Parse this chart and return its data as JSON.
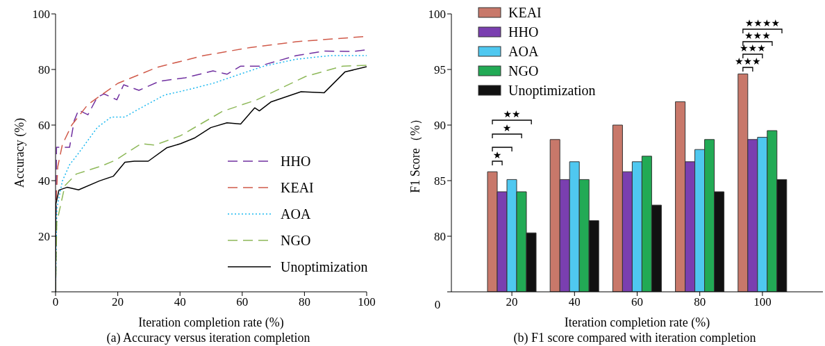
{
  "chart_data": [
    {
      "type": "line",
      "title": "(a) Accuracy versus iteration completion",
      "xlabel": "Iteration completion rate (%)",
      "ylabel": "Accuracy (%)",
      "xlim": [
        0,
        100
      ],
      "xticks": [
        0,
        20,
        40,
        60,
        80,
        100
      ],
      "ylim": [
        0,
        100
      ],
      "yticks": [
        {
          "value": 0,
          "label": null
        },
        20,
        40,
        60,
        80,
        100
      ],
      "legend": "bottom right",
      "series": [
        {
          "name": "HHO",
          "color": "#7030a0",
          "line_style": "dashed",
          "x": [
            0,
            0.3,
            4.5,
            6,
            7.4,
            10.4,
            13.4,
            15.6,
            19.7,
            21.9,
            26.8,
            33.5,
            41.7,
            50.6,
            55.1,
            59.5,
            65.5,
            77.4,
            86.3,
            96,
            100
          ],
          "values": [
            0,
            52,
            52,
            61.6,
            65.4,
            63.7,
            70,
            71.2,
            69.1,
            74.5,
            72.5,
            75.8,
            77,
            79.5,
            78.3,
            81.2,
            81.2,
            85,
            86.6,
            86.5,
            87.1
          ]
        },
        {
          "name": "KEAI",
          "color": "#d05a4a",
          "line_style": "dashed",
          "x": [
            0,
            0.1,
            0.7,
            2.2,
            5.2,
            10.4,
            20,
            32.7,
            47.6,
            62.5,
            77.4,
            100
          ],
          "values": [
            0,
            30,
            45,
            53,
            60,
            67.4,
            75,
            80.8,
            85,
            87.9,
            90,
            91.9
          ]
        },
        {
          "name": "AOA",
          "color": "#1ab8f0",
          "line_style": "dotted",
          "x": [
            0,
            0.4,
            2.2,
            4.5,
            7.4,
            13.4,
            17.9,
            22.3,
            26.8,
            35,
            41.7,
            50.6,
            60.3,
            67,
            77.4,
            88.5,
            100
          ],
          "values": [
            0,
            29.9,
            39.9,
            45.7,
            49.9,
            59.1,
            62.9,
            62.9,
            65.8,
            70.8,
            72.5,
            75,
            78.7,
            81.2,
            83.7,
            85,
            85
          ]
        },
        {
          "name": "NGO",
          "color": "#8db858",
          "line_style": "dashed",
          "x": [
            0,
            0.4,
            3,
            6.7,
            14.9,
            19.3,
            27.5,
            32,
            40.2,
            53.6,
            64.7,
            80.4,
            92.3,
            100
          ],
          "values": [
            0,
            24.9,
            38.2,
            42.4,
            45.3,
            47.4,
            53.3,
            52.8,
            56.2,
            64.9,
            69.1,
            77.5,
            81.2,
            81.5
          ]
        },
        {
          "name": "Unoptimization",
          "color": "#000000",
          "line_style": "solid",
          "x": [
            0,
            0.1,
            1.1,
            3.7,
            7.4,
            14.1,
            18.6,
            22.3,
            25.3,
            29.8,
            35.7,
            40.2,
            44.6,
            49.9,
            55.1,
            59.5,
            64,
            65.5,
            69.2,
            78.9,
            86.3,
            93,
            100
          ],
          "values": [
            0,
            31.6,
            36.6,
            37.6,
            36.7,
            39.9,
            41.6,
            46.6,
            47,
            47,
            51.8,
            53.3,
            55.3,
            59.1,
            60.8,
            60.4,
            66.2,
            65.1,
            68.3,
            72,
            71.6,
            79.1,
            81
          ]
        }
      ]
    },
    {
      "type": "bar",
      "title": "(b) F1 score compared with iteration completion",
      "xlabel": "Iteration completion rate (%)",
      "ylabel": "F1 Score（%）",
      "categories": [
        "20",
        "40",
        "60",
        "80",
        "100"
      ],
      "ylim": [
        75,
        100
      ],
      "yticks": [
        {
          "value": 75,
          "label": null
        },
        80,
        85,
        90,
        95,
        100
      ],
      "legend": "top left",
      "series": [
        {
          "name": "KEAI",
          "color": "#c8786a",
          "values": [
            85.8,
            88.7,
            90.0,
            92.1,
            94.6
          ]
        },
        {
          "name": "HHO",
          "color": "#7a3fb0",
          "values": [
            84.0,
            85.1,
            85.8,
            86.7,
            88.7
          ]
        },
        {
          "name": "AOA",
          "color": "#4fc8f0",
          "values": [
            85.1,
            86.7,
            86.7,
            87.8,
            88.9
          ]
        },
        {
          "name": "NGO",
          "color": "#22aa55",
          "values": [
            84.0,
            85.1,
            87.2,
            88.7,
            89.5
          ]
        },
        {
          "name": "Unoptimization",
          "color": "#111111",
          "values": [
            80.3,
            81.4,
            82.8,
            84.0,
            85.1
          ]
        }
      ],
      "annotations": [
        "★",
        "★",
        "★★",
        "★★★",
        "★★★",
        "★★★",
        "★★★★",
        "0"
      ]
    }
  ]
}
